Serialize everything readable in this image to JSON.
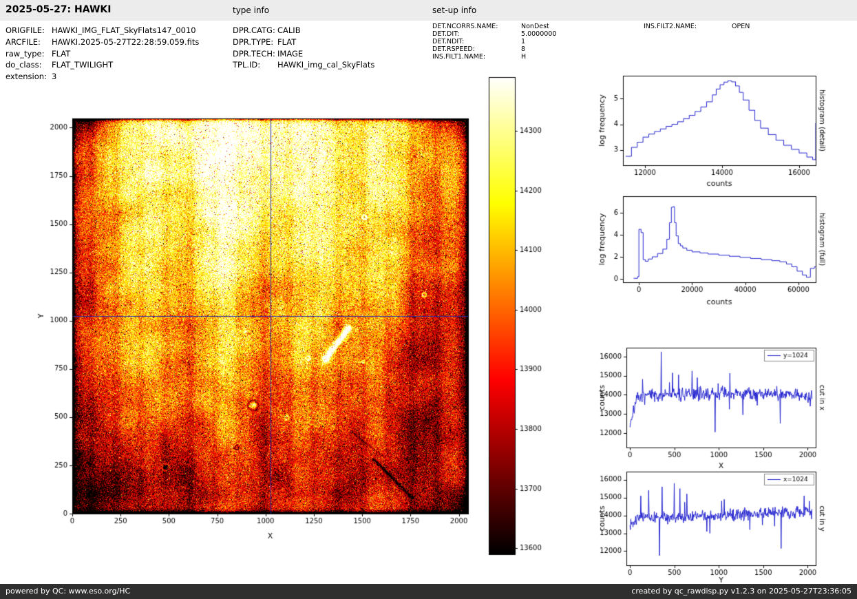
{
  "header": {
    "title": "2025-05-27: HAWKI",
    "type_info_label": "type info",
    "setup_info_label": "set-up info"
  },
  "metadata": {
    "left": [
      {
        "key": "ORIGFILE:",
        "value": "HAWKI_IMG_FLAT_SkyFlats147_0010"
      },
      {
        "key": "ARCFILE:",
        "value": "HAWKI.2025-05-27T22:28:59.059.fits"
      },
      {
        "key": "raw_type:",
        "value": "FLAT"
      },
      {
        "key": "do_class:",
        "value": "FLAT_TWILIGHT"
      },
      {
        "key": "extension:",
        "value": "3"
      }
    ],
    "type_info": [
      {
        "key": "DPR.CATG:",
        "value": "CALIB"
      },
      {
        "key": "DPR.TYPE:",
        "value": "FLAT"
      },
      {
        "key": "DPR.TECH:",
        "value": "IMAGE"
      },
      {
        "key": "TPL.ID:",
        "value": "HAWKI_img_cal_SkyFlats"
      }
    ],
    "setup_info": [
      {
        "key": "DET.NCORRS.NAME:",
        "value": "NonDest"
      },
      {
        "key": "DET.DIT:",
        "value": "5.0000000"
      },
      {
        "key": "DET.NDIT:",
        "value": "1"
      },
      {
        "key": "DET.RSPEED:",
        "value": "8"
      },
      {
        "key": "INS.FILT1.NAME:",
        "value": "H"
      }
    ],
    "setup_info_right": [
      {
        "key": "INS.FILT2.NAME:",
        "value": "OPEN"
      }
    ]
  },
  "footer": {
    "powered_by": "powered by QC: www.eso.org/HC",
    "created_by": "created by qc_rawdisp.py v1.2.3 on 2025-05-27T23:36:05"
  },
  "colors": {
    "plot_line": "#2323cf",
    "crosshair": "#2a2aa8",
    "topbar_bg": "#ececec",
    "footer_bg": "#2f2f2f"
  },
  "chart_data": [
    {
      "type": "heatmap",
      "name": "raw-image",
      "xlabel": "X",
      "ylabel": "Y",
      "xlim": [
        0,
        2048
      ],
      "ylim": [
        0,
        2048
      ],
      "xticks": [
        0,
        250,
        500,
        750,
        1000,
        1250,
        1500,
        1750,
        2000
      ],
      "yticks": [
        0,
        250,
        500,
        750,
        1000,
        1250,
        1500,
        1750,
        2000
      ],
      "crosshair": {
        "x": 1024,
        "y": 1024
      },
      "colorbar": {
        "cmap": "hot",
        "vmin": 13590,
        "vmax": 14390,
        "ticks": [
          13600,
          13700,
          13800,
          13900,
          14000,
          14100,
          14200,
          14300
        ]
      },
      "texture": {
        "seed": 42,
        "base": 14060,
        "noise": 105,
        "blotch_amp": 85,
        "edge": 9,
        "stripes": [
          25,
          18,
          55
        ],
        "shading": [
          [
            -60,
            1024,
            150,
            1600,
            -380
          ],
          [
            130,
            120,
            500,
            380,
            -260
          ],
          [
            1000,
            2350,
            900,
            750,
            300
          ],
          [
            700,
            1800,
            500,
            600,
            150
          ],
          [
            1900,
            700,
            250,
            900,
            -180
          ],
          [
            1300,
            300,
            700,
            400,
            -120
          ],
          [
            780,
            1200,
            120,
            800,
            100
          ],
          [
            1000,
            150,
            800,
            250,
            -120
          ],
          [
            0,
            2048,
            200,
            120,
            -350
          ],
          [
            2048,
            2048,
            150,
            90,
            -400
          ],
          [
            2048,
            0,
            180,
            120,
            -300
          ],
          [
            1700,
            500,
            90,
            500,
            -120
          ],
          [
            2048,
            1024,
            60,
            1024,
            -200
          ],
          [
            1450,
            1500,
            300,
            500,
            120
          ]
        ],
        "spots": [
          [
            1513,
            1537,
            11,
            5,
            320
          ],
          [
            1823,
            1134,
            10,
            5,
            350
          ],
          [
            1221,
            806,
            9,
            5,
            260
          ],
          [
            936,
            560,
            0,
            16,
            380
          ],
          [
            936,
            560,
            26,
            6,
            -220
          ],
          [
            1111,
            496,
            10,
            5,
            260
          ],
          [
            851,
            342,
            10,
            5,
            -260
          ],
          [
            481,
            239,
            0,
            10,
            -380
          ],
          [
            481,
            239,
            18,
            5,
            160
          ],
          [
            146,
            456,
            0,
            6,
            -280
          ],
          [
            1506,
            787,
            7,
            4,
            230
          ],
          [
            1780,
            1850,
            0,
            5,
            -250
          ],
          [
            420,
            1020,
            0,
            5,
            -240
          ],
          [
            700,
            740,
            0,
            5,
            -240
          ],
          [
            260,
            620,
            0,
            4,
            -230
          ],
          [
            1960,
            430,
            0,
            6,
            -260
          ],
          [
            560,
            120,
            0,
            5,
            -250
          ],
          [
            890,
            950,
            8,
            4,
            200
          ],
          [
            1650,
            640,
            0,
            5,
            -230
          ],
          [
            300,
            1580,
            0,
            4,
            -220
          ],
          [
            1350,
            1290,
            0,
            4,
            -200
          ],
          [
            620,
            1700,
            0,
            4,
            -210
          ],
          [
            1050,
            210,
            0,
            5,
            -240
          ],
          [
            170,
            900,
            0,
            4,
            -230
          ]
        ],
        "streaks": [
          [
            1310,
            800,
            1430,
            960,
            16,
            600
          ],
          [
            1560,
            280,
            1760,
            80,
            7,
            -300
          ],
          [
            1450,
            420,
            1600,
            300,
            5,
            -150
          ]
        ]
      }
    },
    {
      "type": "line",
      "name": "histogram-detail",
      "rlabel": "histogram (detail)",
      "xlabel": "counts",
      "ylabel": "log frequency",
      "xlim": [
        11430,
        16430
      ],
      "ylim": [
        2.4,
        5.9
      ],
      "xticks": [
        12000,
        14000,
        16000
      ],
      "yticks": [
        3,
        4,
        5
      ],
      "step": true,
      "x": [
        11500,
        11650,
        11800,
        11950,
        12100,
        12250,
        12400,
        12550,
        12700,
        12850,
        13000,
        13150,
        13300,
        13450,
        13600,
        13750,
        13850,
        13950,
        14050,
        14150,
        14250,
        14350,
        14450,
        14550,
        14700,
        14850,
        15000,
        15200,
        15400,
        15600,
        15800,
        16000,
        16200,
        16350,
        16430
      ],
      "y": [
        2.75,
        3.1,
        3.3,
        3.5,
        3.62,
        3.72,
        3.82,
        3.92,
        4.0,
        4.1,
        4.22,
        4.35,
        4.5,
        4.68,
        4.88,
        5.15,
        5.38,
        5.55,
        5.65,
        5.7,
        5.66,
        5.5,
        5.25,
        4.95,
        4.55,
        4.15,
        3.85,
        3.6,
        3.38,
        3.18,
        3.02,
        2.88,
        2.72,
        2.62,
        4.05
      ]
    },
    {
      "type": "line",
      "name": "histogram-full",
      "rlabel": "histogram (full)",
      "xlabel": "counts",
      "ylabel": "log frequency",
      "xlim": [
        -6000,
        66500
      ],
      "ylim": [
        -0.31,
        7.5
      ],
      "xticks": [
        0,
        20000,
        40000,
        60000
      ],
      "yticks": [
        0,
        2,
        4,
        6
      ],
      "step": true,
      "x": [
        -2000,
        -500,
        0,
        800,
        1600,
        2400,
        3500,
        5000,
        7000,
        9000,
        10500,
        11500,
        12200,
        12800,
        13400,
        14000,
        14800,
        15600,
        16500,
        18000,
        20000,
        23000,
        26000,
        30000,
        34000,
        38000,
        42000,
        46000,
        50000,
        53000,
        55500,
        57500,
        59500,
        61500,
        63000,
        64500,
        66000,
        67500
      ],
      "y": [
        0.05,
        0.2,
        4.5,
        4.2,
        1.75,
        1.6,
        1.8,
        2.0,
        2.3,
        2.7,
        3.6,
        5.1,
        6.5,
        6.55,
        5.1,
        3.9,
        3.2,
        3.0,
        2.8,
        2.6,
        2.45,
        2.35,
        2.25,
        2.15,
        2.05,
        1.95,
        1.85,
        1.75,
        1.65,
        1.55,
        1.35,
        1.1,
        0.7,
        0.35,
        0.15,
        0.95,
        1.1,
        0.2
      ]
    },
    {
      "type": "line",
      "name": "cut-x",
      "rlabel": "cut in x",
      "xlabel": "X",
      "ylabel": "counts",
      "legend": "y=1024",
      "xlim": [
        -40,
        2090
      ],
      "ylim": [
        11240,
        16470
      ],
      "xticks": [
        0,
        500,
        1000,
        1500,
        2000
      ],
      "yticks": [
        12000,
        13000,
        14000,
        15000,
        16000
      ],
      "gen": {
        "seed": 7,
        "n": 420,
        "noise": 170,
        "baseline": [
          [
            0,
            12450
          ],
          [
            70,
            13750
          ],
          [
            160,
            13920
          ],
          [
            400,
            14000
          ],
          [
            1000,
            14060
          ],
          [
            1600,
            14050
          ],
          [
            1980,
            14020
          ],
          [
            2048,
            13750
          ]
        ],
        "spikes": [
          [
            350,
            16250
          ],
          [
            480,
            15150
          ],
          [
            545,
            15050
          ],
          [
            700,
            15250
          ],
          [
            760,
            14900
          ],
          [
            960,
            12050
          ],
          [
            1120,
            13250
          ],
          [
            1270,
            12950
          ],
          [
            1430,
            13450
          ],
          [
            1690,
            12500
          ],
          [
            2030,
            13400
          ]
        ]
      }
    },
    {
      "type": "line",
      "name": "cut-y",
      "rlabel": "cut in y",
      "xlabel": "Y",
      "ylabel": "counts",
      "legend": "x=1024",
      "xlim": [
        -40,
        2090
      ],
      "ylim": [
        11210,
        16450
      ],
      "xticks": [
        0,
        500,
        1000,
        1500,
        2000
      ],
      "yticks": [
        12000,
        13000,
        14000,
        15000,
        16000
      ],
      "gen": {
        "seed": 13,
        "n": 420,
        "noise": 150,
        "baseline": [
          [
            0,
            13600
          ],
          [
            100,
            13850
          ],
          [
            500,
            13900
          ],
          [
            1024,
            14000
          ],
          [
            1600,
            14150
          ],
          [
            2000,
            14200
          ],
          [
            2048,
            14100
          ]
        ],
        "spikes": [
          [
            120,
            15100
          ],
          [
            210,
            15400
          ],
          [
            330,
            11750
          ],
          [
            360,
            15600
          ],
          [
            500,
            15800
          ],
          [
            560,
            15500
          ],
          [
            640,
            15200
          ],
          [
            900,
            13000
          ],
          [
            1060,
            14900
          ],
          [
            1350,
            13200
          ],
          [
            1700,
            12150
          ],
          [
            1960,
            15100
          ],
          [
            2020,
            14800
          ]
        ]
      }
    }
  ]
}
